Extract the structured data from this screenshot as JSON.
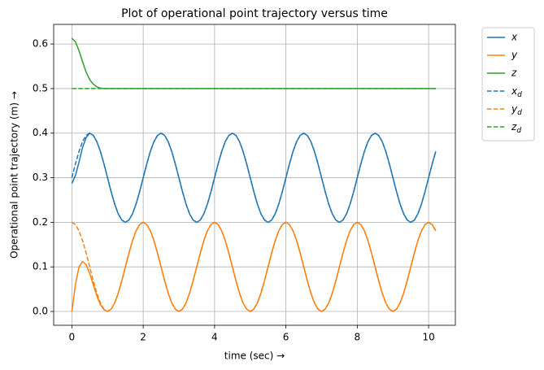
{
  "chart_data": {
    "type": "line",
    "title": "Plot of operational point trajectory versus time",
    "x_label": "time (sec)  →",
    "y_label": "Operational point trajectory (m)  →",
    "xlim": [
      -0.51,
      10.75
    ],
    "ylim": [
      -0.031,
      0.644
    ],
    "xticks": [
      0,
      2,
      4,
      6,
      8,
      10
    ],
    "yticks": [
      {
        "value": 0,
        "label": "0.0"
      },
      0.1,
      0.2,
      0.3,
      0.4,
      0.5,
      0.6
    ],
    "grid": true,
    "legend": "outside upper right",
    "x": [
      0,
      0.1,
      0.2,
      0.3,
      0.4,
      0.5,
      0.6,
      0.7,
      0.8,
      0.9,
      1,
      1.1,
      1.2,
      1.3,
      1.4,
      1.5,
      1.6,
      1.7,
      1.8,
      1.9,
      2,
      2.1,
      2.2,
      2.3,
      2.4,
      2.5,
      2.6,
      2.7,
      2.8,
      2.9,
      3,
      3.1,
      3.2,
      3.3,
      3.4,
      3.5,
      3.6,
      3.7,
      3.8,
      3.9,
      4,
      4.1,
      4.2,
      4.3,
      4.4,
      4.5,
      4.6,
      4.7,
      4.8,
      4.9,
      5,
      5.1,
      5.2,
      5.3,
      5.4,
      5.5,
      5.6,
      5.7,
      5.8,
      5.9,
      6,
      6.1,
      6.2,
      6.3,
      6.4,
      6.5,
      6.6,
      6.7,
      6.8,
      6.9,
      7,
      7.1,
      7.2,
      7.3,
      7.4,
      7.5,
      7.6,
      7.7,
      7.8,
      7.9,
      8,
      8.1,
      8.2,
      8.3,
      8.4,
      8.5,
      8.6,
      8.7,
      8.8,
      8.9,
      9,
      9.1,
      9.2,
      9.3,
      9.4,
      9.5,
      9.6,
      9.7,
      9.8,
      9.9,
      10,
      10.1,
      10.2
    ],
    "series": [
      {
        "name": "x",
        "color": "#1f77b4",
        "linestyle": "solid",
        "values": [
          0.287,
          0.305,
          0.335,
          0.368,
          0.39,
          0.4,
          0.395,
          0.381,
          0.359,
          0.331,
          0.3,
          0.269,
          0.241,
          0.219,
          0.205,
          0.2,
          0.205,
          0.219,
          0.241,
          0.269,
          0.3,
          0.331,
          0.359,
          0.381,
          0.395,
          0.4,
          0.395,
          0.381,
          0.359,
          0.331,
          0.3,
          0.269,
          0.241,
          0.219,
          0.205,
          0.2,
          0.205,
          0.219,
          0.241,
          0.269,
          0.3,
          0.331,
          0.359,
          0.381,
          0.395,
          0.4,
          0.395,
          0.381,
          0.359,
          0.331,
          0.3,
          0.269,
          0.241,
          0.219,
          0.205,
          0.2,
          0.205,
          0.219,
          0.241,
          0.269,
          0.3,
          0.331,
          0.359,
          0.381,
          0.395,
          0.4,
          0.395,
          0.381,
          0.359,
          0.331,
          0.3,
          0.269,
          0.241,
          0.219,
          0.205,
          0.2,
          0.205,
          0.219,
          0.241,
          0.269,
          0.3,
          0.331,
          0.359,
          0.381,
          0.395,
          0.4,
          0.395,
          0.381,
          0.359,
          0.331,
          0.3,
          0.269,
          0.241,
          0.219,
          0.205,
          0.2,
          0.205,
          0.219,
          0.241,
          0.269,
          0.3,
          0.331,
          0.359
        ]
      },
      {
        "name": "y",
        "color": "#ff7f0e",
        "linestyle": "solid",
        "values": [
          0,
          0.06,
          0.1,
          0.112,
          0.105,
          0.085,
          0.06,
          0.035,
          0.015,
          0.004,
          0,
          0.005,
          0.019,
          0.041,
          0.069,
          0.1,
          0.131,
          0.159,
          0.181,
          0.195,
          0.2,
          0.195,
          0.181,
          0.159,
          0.131,
          0.1,
          0.069,
          0.041,
          0.019,
          0.005,
          0,
          0.005,
          0.019,
          0.041,
          0.069,
          0.1,
          0.131,
          0.159,
          0.181,
          0.195,
          0.2,
          0.195,
          0.181,
          0.159,
          0.131,
          0.1,
          0.069,
          0.041,
          0.019,
          0.005,
          0,
          0.005,
          0.019,
          0.041,
          0.069,
          0.1,
          0.131,
          0.159,
          0.181,
          0.195,
          0.2,
          0.195,
          0.181,
          0.159,
          0.131,
          0.1,
          0.069,
          0.041,
          0.019,
          0.005,
          0,
          0.005,
          0.019,
          0.041,
          0.069,
          0.1,
          0.131,
          0.159,
          0.181,
          0.195,
          0.2,
          0.195,
          0.181,
          0.159,
          0.131,
          0.1,
          0.069,
          0.041,
          0.019,
          0.005,
          0,
          0.005,
          0.019,
          0.041,
          0.069,
          0.1,
          0.131,
          0.159,
          0.181,
          0.195,
          0.2,
          0.195,
          0.181
        ]
      },
      {
        "name": "z",
        "color": "#2ca02c",
        "linestyle": "solid",
        "values": [
          0.613,
          0.605,
          0.585,
          0.56,
          0.537,
          0.52,
          0.51,
          0.504,
          0.501,
          0.5,
          0.5,
          0.5,
          0.5,
          0.5,
          0.5,
          0.5,
          0.5,
          0.5,
          0.5,
          0.5,
          0.5,
          0.5,
          0.5,
          0.5,
          0.5,
          0.5,
          0.5,
          0.5,
          0.5,
          0.5,
          0.5,
          0.5,
          0.5,
          0.5,
          0.5,
          0.5,
          0.5,
          0.5,
          0.5,
          0.5,
          0.5,
          0.5,
          0.5,
          0.5,
          0.5,
          0.5,
          0.5,
          0.5,
          0.5,
          0.5,
          0.5,
          0.5,
          0.5,
          0.5,
          0.5,
          0.5,
          0.5,
          0.5,
          0.5,
          0.5,
          0.5,
          0.5,
          0.5,
          0.5,
          0.5,
          0.5,
          0.5,
          0.5,
          0.5,
          0.5,
          0.5,
          0.5,
          0.5,
          0.5,
          0.5,
          0.5,
          0.5,
          0.5,
          0.5,
          0.5,
          0.5,
          0.5,
          0.5,
          0.5,
          0.5,
          0.5,
          0.5,
          0.5,
          0.5,
          0.5,
          0.5,
          0.5,
          0.5,
          0.5,
          0.5,
          0.5,
          0.5,
          0.5,
          0.5,
          0.5,
          0.5,
          0.5,
          0.5
        ]
      },
      {
        "name": "xd",
        "color": "#1f77b4",
        "linestyle": "dashed",
        "values": [
          0.3,
          0.331,
          0.359,
          0.381,
          0.395,
          0.4,
          0.395,
          0.381,
          0.359,
          0.331,
          0.3,
          0.269,
          0.241,
          0.219,
          0.205,
          0.2,
          0.205,
          0.219,
          0.241,
          0.269,
          0.3,
          0.331,
          0.359,
          0.381,
          0.395,
          0.4,
          0.395,
          0.381,
          0.359,
          0.331,
          0.3,
          0.269,
          0.241,
          0.219,
          0.205,
          0.2,
          0.205,
          0.219,
          0.241,
          0.269,
          0.3,
          0.331,
          0.359,
          0.381,
          0.395,
          0.4,
          0.395,
          0.381,
          0.359,
          0.331,
          0.3,
          0.269,
          0.241,
          0.219,
          0.205,
          0.2,
          0.205,
          0.219,
          0.241,
          0.269,
          0.3,
          0.331,
          0.359,
          0.381,
          0.395,
          0.4,
          0.395,
          0.381,
          0.359,
          0.331,
          0.3,
          0.269,
          0.241,
          0.219,
          0.205,
          0.2,
          0.205,
          0.219,
          0.241,
          0.269,
          0.3,
          0.331,
          0.359,
          0.381,
          0.395,
          0.4,
          0.395,
          0.381,
          0.359,
          0.331,
          0.3,
          0.269,
          0.241,
          0.219,
          0.205,
          0.2,
          0.205,
          0.219,
          0.241,
          0.269,
          0.3,
          0.331,
          0.359
        ]
      },
      {
        "name": "yd",
        "color": "#ff7f0e",
        "linestyle": "dashed",
        "values": [
          0.2,
          0.195,
          0.181,
          0.159,
          0.131,
          0.1,
          0.069,
          0.041,
          0.019,
          0.005,
          0,
          0.005,
          0.019,
          0.041,
          0.069,
          0.1,
          0.131,
          0.159,
          0.181,
          0.195,
          0.2,
          0.195,
          0.181,
          0.159,
          0.131,
          0.1,
          0.069,
          0.041,
          0.019,
          0.005,
          0,
          0.005,
          0.019,
          0.041,
          0.069,
          0.1,
          0.131,
          0.159,
          0.181,
          0.195,
          0.2,
          0.195,
          0.181,
          0.159,
          0.131,
          0.1,
          0.069,
          0.041,
          0.019,
          0.005,
          0,
          0.005,
          0.019,
          0.041,
          0.069,
          0.1,
          0.131,
          0.159,
          0.181,
          0.195,
          0.2,
          0.195,
          0.181,
          0.159,
          0.131,
          0.1,
          0.069,
          0.041,
          0.019,
          0.005,
          0,
          0.005,
          0.019,
          0.041,
          0.069,
          0.1,
          0.131,
          0.159,
          0.181,
          0.195,
          0.2,
          0.195,
          0.181,
          0.159,
          0.131,
          0.1,
          0.069,
          0.041,
          0.019,
          0.005,
          0,
          0.005,
          0.019,
          0.041,
          0.069,
          0.1,
          0.131,
          0.159,
          0.181,
          0.195,
          0.2,
          0.195,
          0.181
        ]
      },
      {
        "name": "zd",
        "color": "#2ca02c",
        "linestyle": "dashed",
        "values": [
          0.5,
          0.5,
          0.5,
          0.5,
          0.5,
          0.5,
          0.5,
          0.5,
          0.5,
          0.5,
          0.5,
          0.5,
          0.5,
          0.5,
          0.5,
          0.5,
          0.5,
          0.5,
          0.5,
          0.5,
          0.5,
          0.5,
          0.5,
          0.5,
          0.5,
          0.5,
          0.5,
          0.5,
          0.5,
          0.5,
          0.5,
          0.5,
          0.5,
          0.5,
          0.5,
          0.5,
          0.5,
          0.5,
          0.5,
          0.5,
          0.5,
          0.5,
          0.5,
          0.5,
          0.5,
          0.5,
          0.5,
          0.5,
          0.5,
          0.5,
          0.5,
          0.5,
          0.5,
          0.5,
          0.5,
          0.5,
          0.5,
          0.5,
          0.5,
          0.5,
          0.5,
          0.5,
          0.5,
          0.5,
          0.5,
          0.5,
          0.5,
          0.5,
          0.5,
          0.5,
          0.5,
          0.5,
          0.5,
          0.5,
          0.5,
          0.5,
          0.5,
          0.5,
          0.5,
          0.5,
          0.5,
          0.5,
          0.5,
          0.5,
          0.5,
          0.5,
          0.5,
          0.5,
          0.5,
          0.5,
          0.5,
          0.5,
          0.5,
          0.5,
          0.5,
          0.5,
          0.5,
          0.5,
          0.5,
          0.5,
          0.5,
          0.5,
          0.5
        ]
      }
    ]
  }
}
